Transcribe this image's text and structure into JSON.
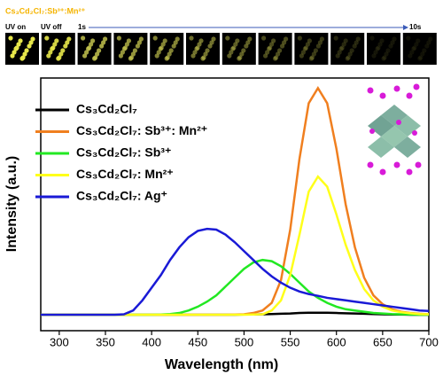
{
  "chart_data": {
    "type": "line",
    "inset_title": "Cs₃Cd₂Cl₇:Sb³⁺:Mn²⁺",
    "inset_labels": [
      "UV on",
      "UV off",
      "1s",
      "10s"
    ],
    "x_label": "Wavelength (nm)",
    "y_label": "Intensity (a.u.)",
    "xlim": [
      280,
      700
    ],
    "xticks": [
      300,
      350,
      400,
      450,
      500,
      550,
      600,
      650,
      700
    ],
    "ylim": [
      0,
      100
    ],
    "legend": "upper left",
    "x": [
      280,
      290,
      300,
      310,
      320,
      330,
      340,
      350,
      360,
      370,
      380,
      390,
      400,
      410,
      420,
      430,
      440,
      450,
      460,
      470,
      480,
      490,
      500,
      510,
      520,
      530,
      540,
      550,
      560,
      570,
      580,
      590,
      600,
      610,
      620,
      630,
      640,
      650,
      660,
      670,
      680,
      690,
      700
    ],
    "series": [
      {
        "name": "Cs₃Cd₂Cl₇",
        "color": "#000000",
        "values": [
          6.3,
          6.3,
          6.3,
          6.3,
          6.3,
          6.3,
          6.3,
          6.3,
          6.3,
          6.3,
          6.3,
          6.3,
          6.3,
          6.3,
          6.3,
          6.3,
          6.3,
          6.3,
          6.3,
          6.3,
          6.3,
          6.3,
          6.4,
          6.4,
          6.5,
          6.6,
          6.7,
          6.8,
          7,
          7.1,
          7.1,
          7.1,
          7,
          6.9,
          6.8,
          6.7,
          6.6,
          6.5,
          6.4,
          6.4,
          6.3,
          6.3,
          6.3
        ]
      },
      {
        "name": "Cs₃Cd₂Cl₇:  Sb³⁺:  Mn²⁺",
        "color": "#f07f1f",
        "values": [
          6.3,
          6.3,
          6.3,
          6.3,
          6.3,
          6.3,
          6.3,
          6.3,
          6.3,
          6.3,
          6.3,
          6.3,
          6.3,
          6.3,
          6.3,
          6.3,
          6.3,
          6.3,
          6.3,
          6.3,
          6.3,
          6.4,
          6.5,
          7,
          8,
          11,
          20,
          40,
          68,
          90,
          96,
          90,
          72,
          50,
          33,
          21,
          14,
          10.5,
          8.5,
          7.5,
          7,
          6.7,
          6.5
        ]
      },
      {
        "name": "Cs₃Cd₂Cl₇:  Sb³⁺",
        "color": "#22e822",
        "values": [
          6.3,
          6.3,
          6.3,
          6.3,
          6.3,
          6.3,
          6.3,
          6.3,
          6.3,
          6.3,
          6.3,
          6.3,
          6.3,
          6.4,
          6.6,
          7,
          8,
          9.5,
          11.5,
          14,
          17.5,
          21,
          24.5,
          27,
          28,
          27.5,
          25.5,
          22.5,
          19,
          15.5,
          13,
          11,
          9.5,
          8.5,
          8,
          7.5,
          7,
          6.8,
          6.6,
          6.5,
          6.4,
          6.3,
          6.3
        ]
      },
      {
        "name": "Cs₃Cd₂Cl₇:  Mn²⁺",
        "color": "#ffff1a",
        "values": [
          6.3,
          6.3,
          6.3,
          6.3,
          6.3,
          6.3,
          6.3,
          6.3,
          6.3,
          6.3,
          6.3,
          6.3,
          6.3,
          6.3,
          6.3,
          6.3,
          6.3,
          6.3,
          6.3,
          6.3,
          6.3,
          6.3,
          6.3,
          6.4,
          6.5,
          8,
          12,
          22,
          38,
          55,
          61,
          57,
          46,
          34,
          24,
          16.5,
          12,
          9.5,
          8,
          7.3,
          6.9,
          6.6,
          6.5
        ]
      },
      {
        "name": "Cs₃Cd₂Cl₇:  Ag⁺",
        "color": "#1a1ad6",
        "values": [
          6.3,
          6.3,
          6.3,
          6.3,
          6.3,
          6.3,
          6.3,
          6.3,
          6.3,
          6.5,
          8,
          12,
          17,
          22,
          28,
          33,
          37,
          39.5,
          40.3,
          40,
          38,
          35,
          31.5,
          28,
          24.5,
          21.5,
          19,
          17,
          15.5,
          14.5,
          13.8,
          13,
          12.5,
          12,
          11.5,
          11,
          10.5,
          10,
          9.5,
          9,
          8.5,
          8,
          7.8
        ]
      }
    ]
  }
}
